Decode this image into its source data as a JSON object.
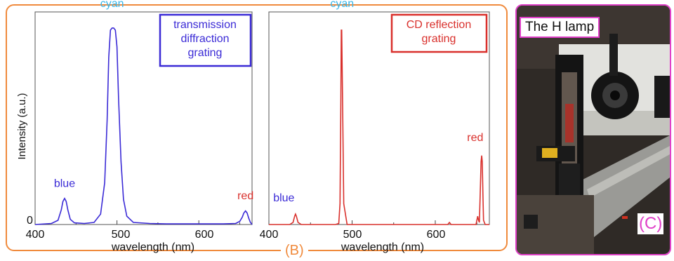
{
  "panel_b": {
    "label": "(B)"
  },
  "chart_data": [
    {
      "type": "line",
      "title": "",
      "legend_box": "transmission\ndiffraction\ngrating",
      "xlabel": "wavelength (nm)",
      "ylabel": "Intensity (a.u.)",
      "xlim": [
        400,
        665
      ],
      "ylim": [
        0,
        1.0
      ],
      "x_ticks": [
        "400",
        "500",
        "600"
      ],
      "y_ticks": [
        "0"
      ],
      "color": "#3b2bd6",
      "annotations": [
        {
          "text": "blue",
          "x": 436,
          "y": 0.16,
          "color": "#3b2bd6"
        },
        {
          "text": "cyan",
          "x": 494,
          "y": 1.02,
          "color": "#38b6e8"
        },
        {
          "text": "red",
          "x": 657,
          "y": 0.1,
          "color": "#d9302c"
        }
      ],
      "series": [
        {
          "x": [
            400,
            420,
            428,
            432,
            434,
            436,
            438,
            440,
            443,
            448,
            460,
            472,
            480,
            485,
            488,
            490,
            492,
            494,
            496,
            498,
            500,
            502,
            505,
            508,
            512,
            520,
            540,
            560,
            600,
            630,
            645,
            650,
            653,
            655,
            657,
            659,
            661,
            663,
            665
          ],
          "y": [
            0.0,
            0.005,
            0.02,
            0.07,
            0.11,
            0.125,
            0.11,
            0.07,
            0.025,
            0.008,
            0.005,
            0.01,
            0.05,
            0.2,
            0.5,
            0.8,
            0.93,
            0.94,
            0.94,
            0.93,
            0.85,
            0.6,
            0.3,
            0.12,
            0.04,
            0.01,
            0.005,
            0.003,
            0.003,
            0.003,
            0.005,
            0.015,
            0.035,
            0.055,
            0.065,
            0.055,
            0.03,
            0.01,
            0.0
          ]
        }
      ]
    },
    {
      "type": "line",
      "title": "",
      "legend_box": "CD reflection\ngrating",
      "xlabel": "wavelength (nm)",
      "ylabel": "",
      "xlim": [
        400,
        665
      ],
      "ylim": [
        0,
        1.0
      ],
      "x_ticks": [
        "400",
        "500",
        "600"
      ],
      "color": "#d9302c",
      "annotations": [
        {
          "text": "blue",
          "x": 418,
          "y": 0.09,
          "color": "#3b2bd6"
        },
        {
          "text": "cyan",
          "x": 488,
          "y": 1.02,
          "color": "#38b6e8"
        },
        {
          "text": "red",
          "x": 648,
          "y": 0.38,
          "color": "#d9302c"
        }
      ],
      "series": [
        {
          "x": [
            400,
            425,
            429,
            431,
            432,
            433,
            435,
            439,
            480,
            484,
            485.5,
            486.5,
            487,
            487.5,
            488.5,
            490,
            494,
            600,
            615,
            617,
            619,
            640,
            649,
            650,
            651,
            652,
            653,
            654,
            655,
            655.8,
            656.5,
            657.2,
            658,
            660,
            665
          ],
          "y": [
            0.0,
            0.0,
            0.01,
            0.04,
            0.05,
            0.04,
            0.01,
            0.0,
            0.0,
            0.005,
            0.1,
            0.6,
            0.93,
            0.93,
            0.6,
            0.1,
            0.0,
            0.0,
            0.0,
            0.01,
            0.0,
            0.0,
            0.0,
            0.02,
            0.04,
            0.02,
            0.01,
            0.15,
            0.3,
            0.33,
            0.3,
            0.15,
            0.02,
            0.0,
            0.0
          ]
        }
      ]
    }
  ],
  "panel_c": {
    "photo_caption": "The H lamp",
    "label": "(C)",
    "photo_colors": {
      "background_dark": "#2f2a26",
      "bench_gray": "#9a9a96",
      "instrument_white": "#e2e2de",
      "tube_red": "#a8322a",
      "mount_black": "#141414"
    }
  }
}
